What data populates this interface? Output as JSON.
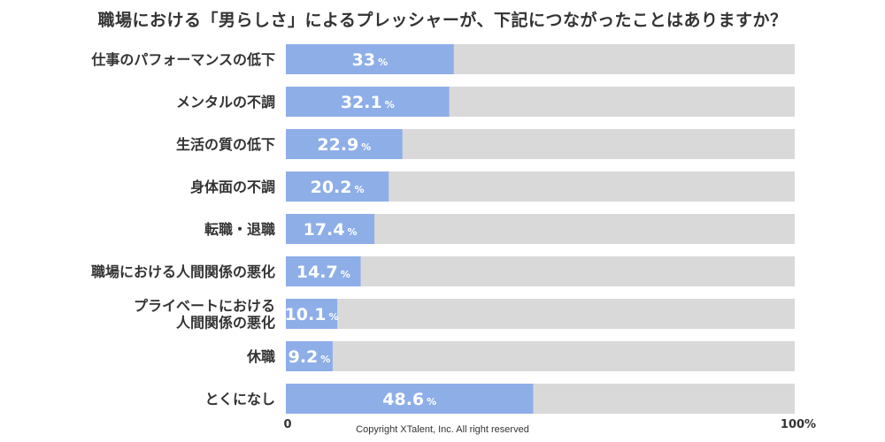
{
  "chart_data": {
    "type": "bar",
    "orientation": "horizontal",
    "title": "職場における「男らしさ」によるプレッシャーが、下記につながったことはありますか？",
    "categories": [
      [
        "仕事のパフォーマンスの低下"
      ],
      [
        "メンタルの不調"
      ],
      [
        "生活の質の低下"
      ],
      [
        "身体面の不調"
      ],
      [
        "転職・退職"
      ],
      [
        "職場における人間関係の悪化"
      ],
      [
        "プライベートにおける",
        "人間関係の悪化"
      ],
      [
        "休職"
      ],
      [
        "とくになし"
      ]
    ],
    "values": [
      33,
      32.1,
      22.9,
      20.2,
      17.4,
      14.7,
      10.1,
      9.2,
      48.6
    ],
    "value_labels": [
      "33",
      "32.1",
      "22.9",
      "20.2",
      "17.4",
      "14.7",
      "10.1",
      "9.2",
      "48.6"
    ],
    "unit": "%",
    "xlim": [
      0,
      100
    ],
    "tick_labels": [
      "0",
      "100%"
    ],
    "grid": false,
    "legend": "none",
    "xlabel": "",
    "ylabel": ""
  },
  "colors": {
    "bar": "#8eaee8",
    "track": "#d9d9d9",
    "text": "#333333",
    "value_text": "#ffffff"
  },
  "footer": {
    "copyright": "Copyright XTalent, Inc. All right reserved"
  }
}
